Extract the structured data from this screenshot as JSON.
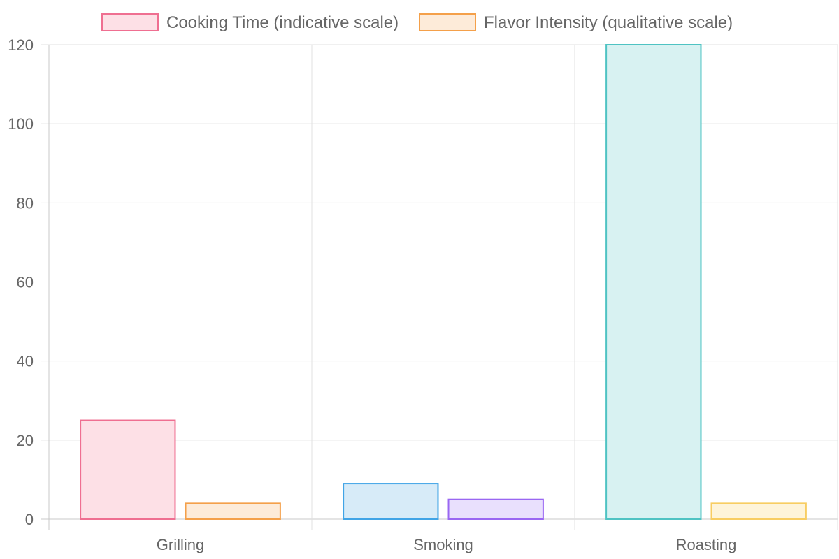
{
  "chart_data": {
    "type": "bar",
    "categories": [
      "Grilling",
      "Smoking",
      "Roasting"
    ],
    "series": [
      {
        "name": "Cooking Time (indicative scale)",
        "values": [
          25,
          9,
          120
        ],
        "fills": [
          "#fde0e6",
          "#d7ebf8",
          "#d8f2f2"
        ],
        "strokes": [
          "#ef6f91",
          "#41a4e6",
          "#4fc3c3"
        ]
      },
      {
        "name": "Flavor Intensity (qualitative scale)",
        "values": [
          4,
          5,
          4
        ],
        "fills": [
          "#fdebd9",
          "#e9e0fd",
          "#fef4d9"
        ],
        "strokes": [
          "#f4a04a",
          "#9a67f2",
          "#f8cd62"
        ]
      }
    ],
    "ylim": [
      0,
      120
    ],
    "yticks": [
      0,
      20,
      40,
      60,
      80,
      100,
      120
    ],
    "xlabel": "",
    "ylabel": "",
    "grid": true,
    "legend_position": "top",
    "colors": {
      "grid": "#e0e0e0",
      "axis": "#c8c8c8",
      "text": "#666666"
    }
  }
}
